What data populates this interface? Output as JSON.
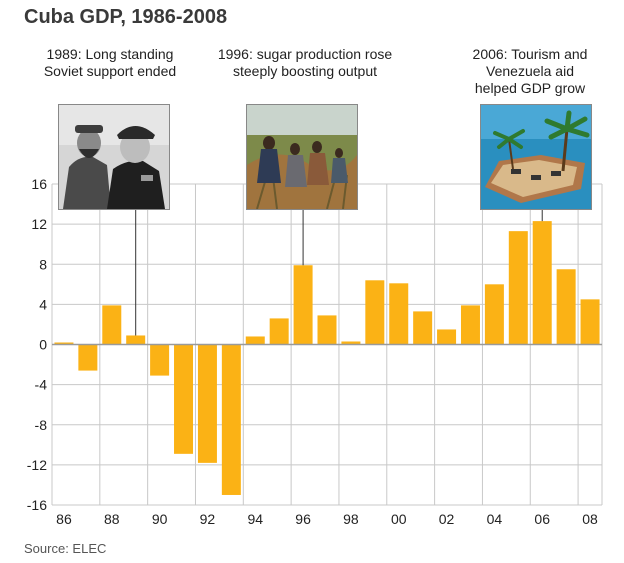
{
  "title": "Cuba GDP, 1986-2008",
  "source": "Source: ELEC",
  "annotations": [
    {
      "year": 1989,
      "text_lines": [
        "1989: Long standing",
        "Soviet support ended"
      ],
      "photo": "castro-khrushchev-photo"
    },
    {
      "year": 1996,
      "text_lines": [
        "1996: sugar production rose",
        "steeply boosting output"
      ],
      "photo": "sugar-harvest-photo"
    },
    {
      "year": 2006,
      "text_lines": [
        "2006: Tourism and",
        "Venezuela aid",
        "helped GDP grow"
      ],
      "photo": "resort-island-photo"
    }
  ],
  "colors": {
    "bar": "#fbb215",
    "grid": "#c8c8c8",
    "zero_line": "#9a9a9a"
  },
  "chart_data": {
    "type": "bar",
    "title": "Cuba GDP, 1986-2008",
    "xlabel": "",
    "ylabel": "",
    "ylim": [
      -16,
      16
    ],
    "yticks": [
      16,
      12,
      8,
      4,
      0,
      -4,
      -8,
      -12,
      -16
    ],
    "grid": true,
    "categories": [
      "1986",
      "1987",
      "1988",
      "1989",
      "1990",
      "1991",
      "1992",
      "1993",
      "1994",
      "1995",
      "1996",
      "1997",
      "1998",
      "1999",
      "2000",
      "2001",
      "2002",
      "2003",
      "2004",
      "2005",
      "2006",
      "2007",
      "2008"
    ],
    "xtick_labels": [
      "86",
      "88",
      "90",
      "92",
      "94",
      "96",
      "98",
      "00",
      "02",
      "04",
      "06",
      "08"
    ],
    "values": [
      0.2,
      -2.6,
      3.9,
      0.9,
      -3.1,
      -10.9,
      -11.8,
      -15.0,
      0.8,
      2.6,
      7.9,
      2.9,
      0.3,
      6.4,
      6.1,
      3.3,
      1.5,
      3.9,
      6.0,
      11.3,
      12.3,
      7.5,
      4.5
    ]
  }
}
